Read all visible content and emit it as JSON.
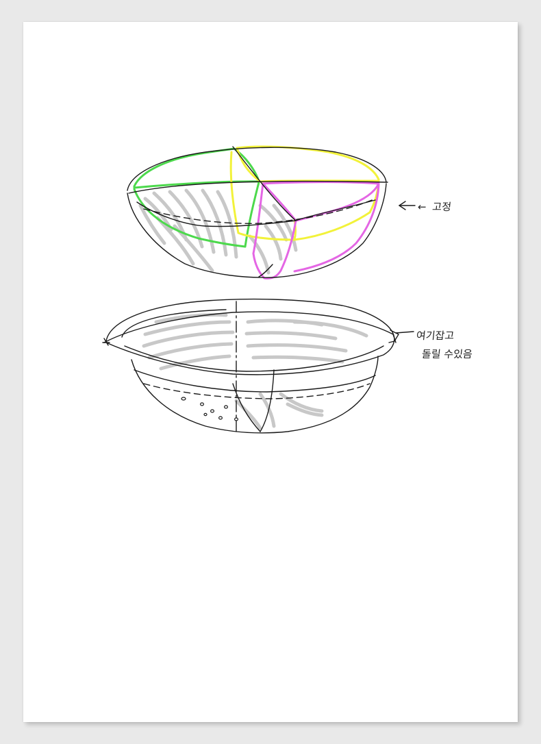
{
  "sheet": {
    "background": "#ffffff",
    "surround": "#e9e9e9"
  },
  "drawing": {
    "subject": "two bowl sketches",
    "stroke_color": "#1a1a1a",
    "shade_color": "#c8c8c8",
    "segment_colors": {
      "green": "#4cd94c",
      "yellow": "#f5f53c",
      "magenta": "#e466e4"
    }
  },
  "annotations": {
    "top_bowl_arrow": "←",
    "top_bowl_note": "고정",
    "bottom_bowl_note_line1": "여기잡고",
    "bottom_bowl_note_line2": "돌릴 수있음"
  }
}
